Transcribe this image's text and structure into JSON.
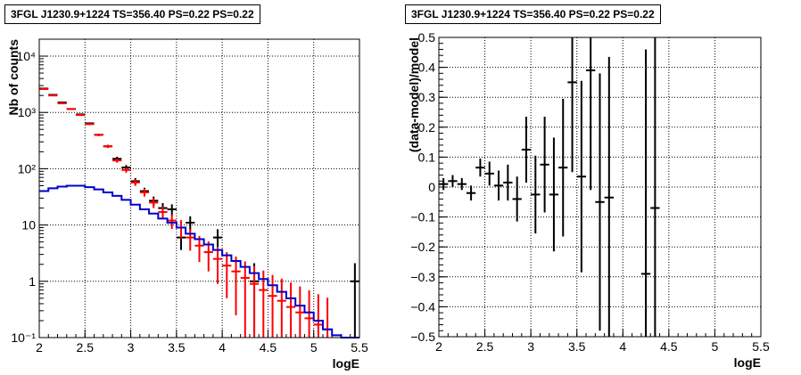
{
  "chart_data": [
    {
      "type": "scatter",
      "title": "3FGL J1230.9+1224 TS=356.40 PS=0.22 PS=0.22",
      "xlabel": "logE",
      "ylabel": "Nb of counts",
      "xlim": [
        2,
        5.5
      ],
      "ylim": [
        0.1,
        20000
      ],
      "yscale": "log",
      "grid": true,
      "x_ticks": [
        "2",
        "2.5",
        "3",
        "3.5",
        "4",
        "4.5",
        "5",
        "5.5"
      ],
      "y_ticks": [
        "10⁻¹",
        "1",
        "10",
        "10²",
        "10³",
        "10⁴"
      ],
      "series": [
        {
          "color": "#000000",
          "points": [
            {
              "x": 2.05,
              "y": 2650,
              "elo": 50,
              "ehi": 50
            },
            {
              "x": 2.15,
              "y": 2050,
              "elo": 45,
              "ehi": 45
            },
            {
              "x": 2.25,
              "y": 1500,
              "elo": 40,
              "ehi": 40
            },
            {
              "x": 2.35,
              "y": 1150,
              "elo": 35,
              "ehi": 35
            },
            {
              "x": 2.45,
              "y": 920,
              "elo": 30,
              "ehi": 30
            },
            {
              "x": 2.55,
              "y": 640,
              "elo": 25,
              "ehi": 25
            },
            {
              "x": 2.65,
              "y": 400,
              "elo": 20,
              "ehi": 20
            },
            {
              "x": 2.75,
              "y": 250,
              "elo": 16,
              "ehi": 16
            },
            {
              "x": 2.85,
              "y": 150,
              "elo": 13,
              "ehi": 13
            },
            {
              "x": 2.95,
              "y": 105,
              "elo": 11,
              "ehi": 11
            },
            {
              "x": 3.05,
              "y": 60,
              "elo": 8,
              "ehi": 8
            },
            {
              "x": 3.15,
              "y": 40,
              "elo": 6,
              "ehi": 6
            },
            {
              "x": 3.25,
              "y": 27,
              "elo": 5,
              "ehi": 5
            },
            {
              "x": 3.35,
              "y": 20,
              "elo": 4.5,
              "ehi": 4.5
            },
            {
              "x": 3.45,
              "y": 19,
              "elo": 4.3,
              "ehi": 4.3
            },
            {
              "x": 3.55,
              "y": 6,
              "elo": 2.4,
              "ehi": 2.4
            },
            {
              "x": 3.65,
              "y": 11,
              "elo": 3.3,
              "ehi": 3.3
            },
            {
              "x": 3.95,
              "y": 6,
              "elo": 2.4,
              "ehi": 2.4
            },
            {
              "x": 4.35,
              "y": 1,
              "elo": 0.9,
              "ehi": 1.1
            },
            {
              "x": 5.45,
              "y": 1,
              "elo": 0.9,
              "ehi": 1.1
            }
          ]
        },
        {
          "color": "#ff0000",
          "points": [
            {
              "x": 2.05,
              "y": 2600,
              "elo": 50,
              "ehi": 50
            },
            {
              "x": 2.15,
              "y": 2000,
              "elo": 45,
              "ehi": 45
            },
            {
              "x": 2.25,
              "y": 1450,
              "elo": 38,
              "ehi": 38
            },
            {
              "x": 2.35,
              "y": 1150,
              "elo": 34,
              "ehi": 34
            },
            {
              "x": 2.45,
              "y": 900,
              "elo": 30,
              "ehi": 30
            },
            {
              "x": 2.55,
              "y": 620,
              "elo": 25,
              "ehi": 25
            },
            {
              "x": 2.65,
              "y": 400,
              "elo": 20,
              "ehi": 20
            },
            {
              "x": 2.75,
              "y": 250,
              "elo": 16,
              "ehi": 16
            },
            {
              "x": 2.85,
              "y": 140,
              "elo": 12,
              "ehi": 12
            },
            {
              "x": 2.95,
              "y": 95,
              "elo": 10,
              "ehi": 10
            },
            {
              "x": 3.05,
              "y": 57,
              "elo": 7.5,
              "ehi": 7.5
            },
            {
              "x": 3.15,
              "y": 38,
              "elo": 6,
              "ehi": 6
            },
            {
              "x": 3.25,
              "y": 25,
              "elo": 5,
              "ehi": 5
            },
            {
              "x": 3.35,
              "y": 17,
              "elo": 4,
              "ehi": 4
            },
            {
              "x": 3.45,
              "y": 12,
              "elo": 3.5,
              "ehi": 3.5
            },
            {
              "x": 3.55,
              "y": 9,
              "elo": 3.2,
              "ehi": 3.2
            },
            {
              "x": 3.65,
              "y": 6,
              "elo": 2.5,
              "ehi": 2.5
            },
            {
              "x": 3.75,
              "y": 4.3,
              "elo": 2.1,
              "ehi": 2.1
            },
            {
              "x": 3.85,
              "y": 3.3,
              "elo": 1.8,
              "ehi": 1.8
            },
            {
              "x": 3.95,
              "y": 2.5,
              "elo": 1.6,
              "ehi": 1.6
            },
            {
              "x": 4.05,
              "y": 1.9,
              "elo": 1.4,
              "ehi": 1.4
            },
            {
              "x": 4.15,
              "y": 1.5,
              "elo": 1.25,
              "ehi": 1.25
            },
            {
              "x": 4.25,
              "y": 1.15,
              "elo": 1.07,
              "ehi": 1.1
            },
            {
              "x": 4.35,
              "y": 0.9,
              "elo": 0.85,
              "ehi": 0.95
            },
            {
              "x": 4.45,
              "y": 0.7,
              "elo": 0.66,
              "ehi": 0.85
            },
            {
              "x": 4.55,
              "y": 0.55,
              "elo": 0.52,
              "ehi": 0.75
            },
            {
              "x": 4.65,
              "y": 0.45,
              "elo": 0.42,
              "ehi": 0.67
            },
            {
              "x": 4.75,
              "y": 0.35,
              "elo": 0.33,
              "ehi": 0.6
            },
            {
              "x": 4.85,
              "y": 0.28,
              "elo": 0.26,
              "ehi": 0.53
            },
            {
              "x": 4.95,
              "y": 0.22,
              "elo": 0.2,
              "ehi": 0.47
            },
            {
              "x": 5.05,
              "y": 0.17,
              "elo": 0.15,
              "ehi": 0.42
            },
            {
              "x": 5.15,
              "y": 0.14,
              "elo": 0.12,
              "ehi": 0.37
            }
          ]
        },
        {
          "color": "#0000cc",
          "type": "step",
          "bin_width": 0.1,
          "x": [
            2.05,
            2.15,
            2.25,
            2.35,
            2.45,
            2.55,
            2.65,
            2.75,
            2.85,
            2.95,
            3.05,
            3.15,
            3.25,
            3.35,
            3.45,
            3.55,
            3.65,
            3.75,
            3.85,
            3.95,
            4.05,
            4.15,
            4.25,
            4.35,
            4.45,
            4.55,
            4.65,
            4.75,
            4.85,
            4.95,
            5.05,
            5.15,
            5.25,
            5.35,
            5.45
          ],
          "values": [
            40,
            45,
            48,
            50,
            50,
            47,
            43,
            38,
            33,
            28,
            23,
            19,
            16,
            13,
            11,
            9,
            7,
            5.6,
            4.5,
            3.6,
            2.9,
            2.3,
            1.8,
            1.4,
            1.1,
            0.85,
            0.65,
            0.5,
            0.37,
            0.28,
            0.2,
            0.14,
            0.11,
            0.1,
            0.1
          ]
        }
      ]
    },
    {
      "type": "scatter",
      "title": "3FGL J1230.9+1224 TS=356.40 PS=0.22 PS=0.22",
      "xlabel": "logE",
      "ylabel": "(data-model)/model",
      "xlim": [
        2,
        5.5
      ],
      "ylim": [
        -0.5,
        0.5
      ],
      "grid": true,
      "x_ticks": [
        "2",
        "2.5",
        "3",
        "3.5",
        "4",
        "4.5",
        "5",
        "5.5"
      ],
      "y_ticks": [
        "−0.5",
        "−0.4",
        "−0.3",
        "−0.2",
        "−0.1",
        "0",
        "0.1",
        "0.2",
        "0.3",
        "0.4",
        "0.5"
      ],
      "series": [
        {
          "color": "#000000",
          "points": [
            {
              "x": 2.05,
              "y": 0.01,
              "elo": 0.02,
              "ehi": 0.02
            },
            {
              "x": 2.15,
              "y": 0.02,
              "elo": 0.02,
              "ehi": 0.02
            },
            {
              "x": 2.25,
              "y": 0.01,
              "elo": 0.02,
              "ehi": 0.02
            },
            {
              "x": 2.35,
              "y": -0.02,
              "elo": 0.025,
              "ehi": 0.025
            },
            {
              "x": 2.45,
              "y": 0.065,
              "elo": 0.03,
              "ehi": 0.03
            },
            {
              "x": 2.55,
              "y": 0.045,
              "elo": 0.04,
              "ehi": 0.04
            },
            {
              "x": 2.65,
              "y": 0.005,
              "elo": 0.05,
              "ehi": 0.05
            },
            {
              "x": 2.75,
              "y": 0.015,
              "elo": 0.06,
              "ehi": 0.06
            },
            {
              "x": 2.85,
              "y": -0.04,
              "elo": 0.075,
              "ehi": 0.075
            },
            {
              "x": 2.95,
              "y": 0.125,
              "elo": 0.11,
              "ehi": 0.11
            },
            {
              "x": 3.05,
              "y": -0.025,
              "elo": 0.13,
              "ehi": 0.13
            },
            {
              "x": 3.15,
              "y": 0.075,
              "elo": 0.16,
              "ehi": 0.16
            },
            {
              "x": 3.25,
              "y": -0.025,
              "elo": 0.19,
              "ehi": 0.19
            },
            {
              "x": 3.35,
              "y": 0.065,
              "elo": 0.23,
              "ehi": 0.23
            },
            {
              "x": 3.45,
              "y": 0.35,
              "elo": 0.3,
              "ehi": 0.3
            },
            {
              "x": 3.55,
              "y": 0.035,
              "elo": 0.32,
              "ehi": 0.32
            },
            {
              "x": 3.65,
              "y": 0.39,
              "elo": 0.4,
              "ehi": 0.4
            },
            {
              "x": 3.75,
              "y": -0.05,
              "elo": 0.43,
              "ehi": 0.43
            },
            {
              "x": 3.85,
              "y": -0.035,
              "elo": 0.47,
              "ehi": 0.47
            },
            {
              "x": 4.25,
              "y": -0.29,
              "elo": 0.75,
              "ehi": 0.75
            },
            {
              "x": 4.35,
              "y": -0.07,
              "elo": 0.85,
              "ehi": 0.85
            }
          ]
        }
      ]
    }
  ]
}
